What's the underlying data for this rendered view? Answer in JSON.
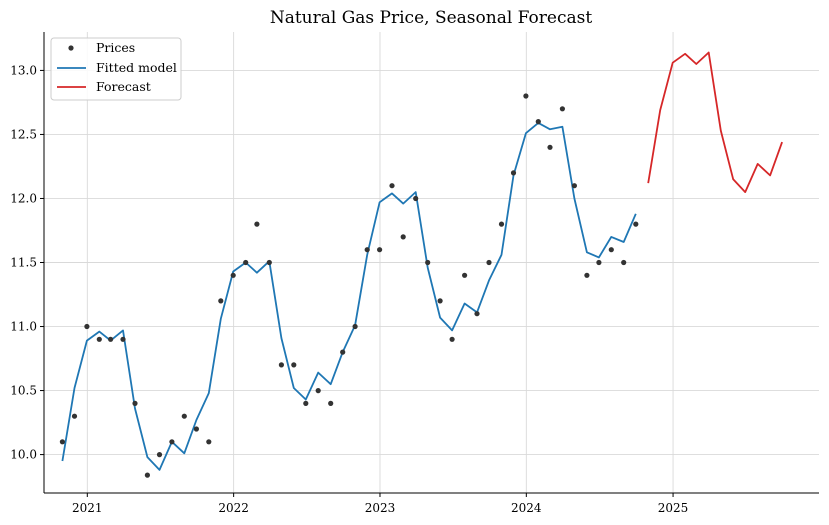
{
  "chart_data": {
    "type": "line",
    "title": "Natural Gas Price, Seasonal Forecast",
    "xlabel": "",
    "ylabel": "",
    "x_ticks": [
      "2021",
      "2022",
      "2023",
      "2024",
      "2025"
    ],
    "y_ticks": [
      "10.0",
      "10.5",
      "11.0",
      "11.5",
      "12.0",
      "12.5",
      "13.0"
    ],
    "ylim": [
      9.7,
      13.3
    ],
    "xlim": [
      "2020-09-15",
      "2025-12-31"
    ],
    "grid": true,
    "legend_position": "top-left",
    "series": [
      {
        "name": "Prices",
        "kind": "points",
        "color": "#333333",
        "dates": [
          "2020-10-31",
          "2020-11-30",
          "2020-12-31",
          "2021-01-31",
          "2021-02-28",
          "2021-03-31",
          "2021-04-30",
          "2021-05-31",
          "2021-06-30",
          "2021-07-31",
          "2021-08-31",
          "2021-09-30",
          "2021-10-31",
          "2021-11-30",
          "2021-12-31",
          "2022-01-31",
          "2022-02-28",
          "2022-03-31",
          "2022-04-30",
          "2022-05-31",
          "2022-06-30",
          "2022-07-31",
          "2022-08-31",
          "2022-09-30",
          "2022-10-31",
          "2022-11-30",
          "2022-12-31",
          "2023-01-31",
          "2023-02-28",
          "2023-03-31",
          "2023-04-30",
          "2023-05-31",
          "2023-06-30",
          "2023-07-31",
          "2023-08-31",
          "2023-09-30",
          "2023-10-31",
          "2023-11-30",
          "2023-12-31",
          "2024-01-31",
          "2024-02-29",
          "2024-03-31",
          "2024-04-30",
          "2024-05-31",
          "2024-06-30",
          "2024-07-31",
          "2024-08-31",
          "2024-09-30"
        ],
        "values": [
          10.1,
          10.3,
          11.0,
          10.9,
          10.9,
          10.9,
          10.4,
          9.84,
          10.0,
          10.1,
          10.3,
          10.2,
          10.1,
          11.2,
          11.4,
          11.5,
          11.8,
          11.5,
          10.7,
          10.7,
          10.4,
          10.5,
          10.4,
          10.8,
          11.0,
          11.6,
          11.6,
          12.1,
          11.7,
          12.0,
          11.5,
          11.2,
          10.9,
          11.4,
          11.1,
          11.5,
          11.8,
          12.2,
          12.8,
          12.6,
          12.4,
          12.7,
          12.1,
          11.4,
          11.5,
          11.6,
          11.5,
          11.8
        ]
      },
      {
        "name": "Fitted model",
        "kind": "line",
        "color": "#1f77b4",
        "dates": [
          "2020-10-31",
          "2020-11-30",
          "2020-12-31",
          "2021-01-31",
          "2021-02-28",
          "2021-03-31",
          "2021-04-30",
          "2021-05-31",
          "2021-06-30",
          "2021-07-31",
          "2021-08-31",
          "2021-09-30",
          "2021-10-31",
          "2021-11-30",
          "2021-12-31",
          "2022-01-31",
          "2022-02-28",
          "2022-03-31",
          "2022-04-30",
          "2022-05-31",
          "2022-06-30",
          "2022-07-31",
          "2022-08-31",
          "2022-09-30",
          "2022-10-31",
          "2022-11-30",
          "2022-12-31",
          "2023-01-31",
          "2023-02-28",
          "2023-03-31",
          "2023-04-30",
          "2023-05-31",
          "2023-06-30",
          "2023-07-31",
          "2023-08-31",
          "2023-09-30",
          "2023-10-31",
          "2023-11-30",
          "2023-12-31",
          "2024-01-31",
          "2024-02-29",
          "2024-03-31",
          "2024-04-30",
          "2024-05-31",
          "2024-06-30",
          "2024-07-31",
          "2024-08-31",
          "2024-09-30"
        ],
        "values": [
          9.95,
          10.52,
          10.89,
          10.96,
          10.89,
          10.97,
          10.36,
          9.98,
          9.88,
          10.1,
          10.01,
          10.27,
          10.48,
          11.06,
          11.43,
          11.5,
          11.42,
          11.51,
          10.91,
          10.52,
          10.43,
          10.64,
          10.55,
          10.8,
          11.01,
          11.56,
          11.97,
          12.04,
          11.96,
          12.05,
          11.46,
          11.07,
          10.97,
          11.18,
          11.11,
          11.36,
          11.56,
          12.18,
          12.51,
          12.59,
          12.54,
          12.56,
          12.0,
          11.58,
          11.54,
          11.7,
          11.66,
          11.88
        ]
      },
      {
        "name": "Forecast",
        "kind": "line",
        "color": "#d62728",
        "dates": [
          "2024-10-31",
          "2024-11-30",
          "2024-12-31",
          "2025-01-31",
          "2025-02-28",
          "2025-03-31",
          "2025-04-30",
          "2025-05-31",
          "2025-06-30",
          "2025-07-31",
          "2025-08-31",
          "2025-09-30"
        ],
        "values": [
          12.12,
          12.69,
          13.06,
          13.13,
          13.05,
          13.14,
          12.53,
          12.15,
          12.05,
          12.27,
          12.18,
          12.44
        ]
      }
    ]
  }
}
